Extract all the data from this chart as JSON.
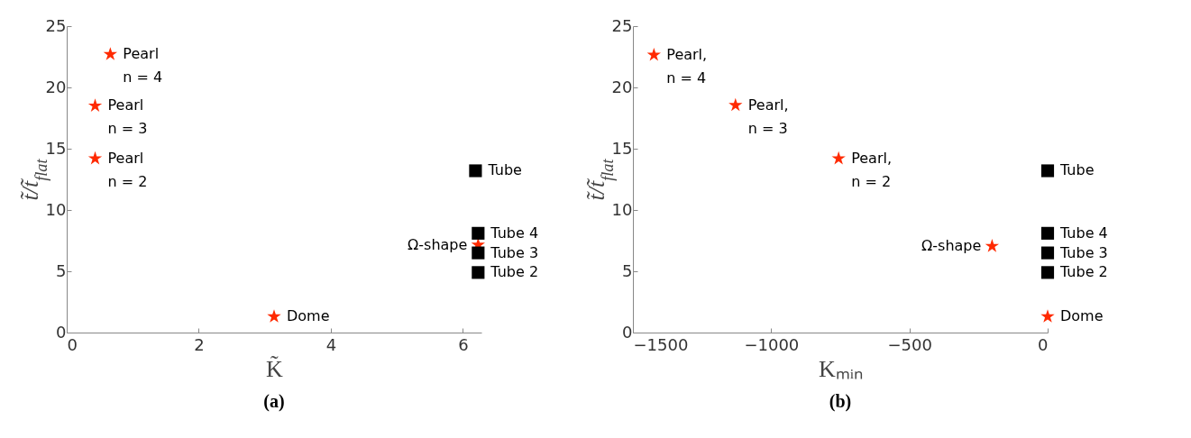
{
  "chart_data": [
    {
      "type": "scatter",
      "title": "(a)",
      "xlabel": "K̃",
      "ylabel": "t̃/t̃$_{flat}$",
      "xlim": [
        0,
        6.28
      ],
      "xticks": [
        0,
        2,
        4,
        6
      ],
      "ylim": [
        0,
        25
      ],
      "yticks": [
        0,
        5,
        10,
        15,
        20,
        25
      ],
      "series": [
        {
          "type": "scatter",
          "marker": "star",
          "color": "#ff2a00",
          "x": [
            0.66,
            0.43,
            0.43,
            3.14,
            6.23
          ],
          "values": [
            22.7,
            18.5,
            14.2,
            1.3,
            7.15
          ]
        },
        {
          "type": "scatter",
          "marker": "square",
          "color": "#000000",
          "x": [
            6.19,
            6.23,
            6.23,
            6.23
          ],
          "values": [
            13.2,
            8.1,
            6.5,
            4.9
          ]
        }
      ],
      "annotations": [
        {
          "text": "Pearl\nn = 4",
          "x": 0.66,
          "y": 22.7
        },
        {
          "text": "Pearl\nn = 3",
          "x": 0.43,
          "y": 18.5
        },
        {
          "text": "Pearl\nn = 2",
          "x": 0.43,
          "y": 14.2
        },
        {
          "text": "Dome",
          "x": 3.14,
          "y": 1.3
        },
        {
          "text": "Tube",
          "x": 6.19,
          "y": 13.2
        },
        {
          "text": "Tube 4",
          "x": 6.23,
          "y": 8.1
        },
        {
          "text": "Tube 3",
          "x": 6.23,
          "y": 6.5
        },
        {
          "text": "Tube 2",
          "x": 6.23,
          "y": 4.9
        },
        {
          "text": "Ω-shape",
          "x": 6.23,
          "y": 7.15
        }
      ]
    },
    {
      "type": "scatter",
      "title": "(b)",
      "xlabel": "Kₘᵢₙ",
      "ylabel": "t̃/t̃$_{flat}$",
      "xlim": [
        -1500,
        0
      ],
      "xticks": [
        -1500,
        -1000,
        -500,
        0
      ],
      "ylim": [
        0,
        25
      ],
      "yticks": [
        0,
        5,
        10,
        15,
        20,
        25
      ],
      "series": [
        {
          "type": "scatter",
          "marker": "star",
          "color": "#ff2a00",
          "x": [
            -1424,
            -1129,
            -756,
            -201,
            0
          ],
          "values": [
            22.65,
            18.55,
            14.2,
            7.05,
            1.3
          ]
        },
        {
          "type": "scatter",
          "marker": "square",
          "color": "#000000",
          "x": [
            0,
            0,
            0,
            0
          ],
          "values": [
            13.2,
            8.1,
            6.5,
            4.9
          ]
        }
      ],
      "annotations": [
        {
          "text": "Pearl,\nn = 4",
          "x": -1424,
          "y": 22.65
        },
        {
          "text": "Pearl,\nn = 3",
          "x": -1129,
          "y": 18.55
        },
        {
          "text": "Pearl,\nn = 2",
          "x": -756,
          "y": 14.2
        },
        {
          "text": "Tube",
          "x": 0,
          "y": 13.2
        },
        {
          "text": "Tube 4",
          "x": 0,
          "y": 8.1
        },
        {
          "text": "Tube 3",
          "x": 0,
          "y": 6.5
        },
        {
          "text": "Tube 2",
          "x": 0,
          "y": 4.9
        },
        {
          "text": "Ω-shape",
          "x": -201,
          "y": 7.05
        },
        {
          "text": "Dome",
          "x": 0,
          "y": 1.3
        }
      ]
    }
  ]
}
